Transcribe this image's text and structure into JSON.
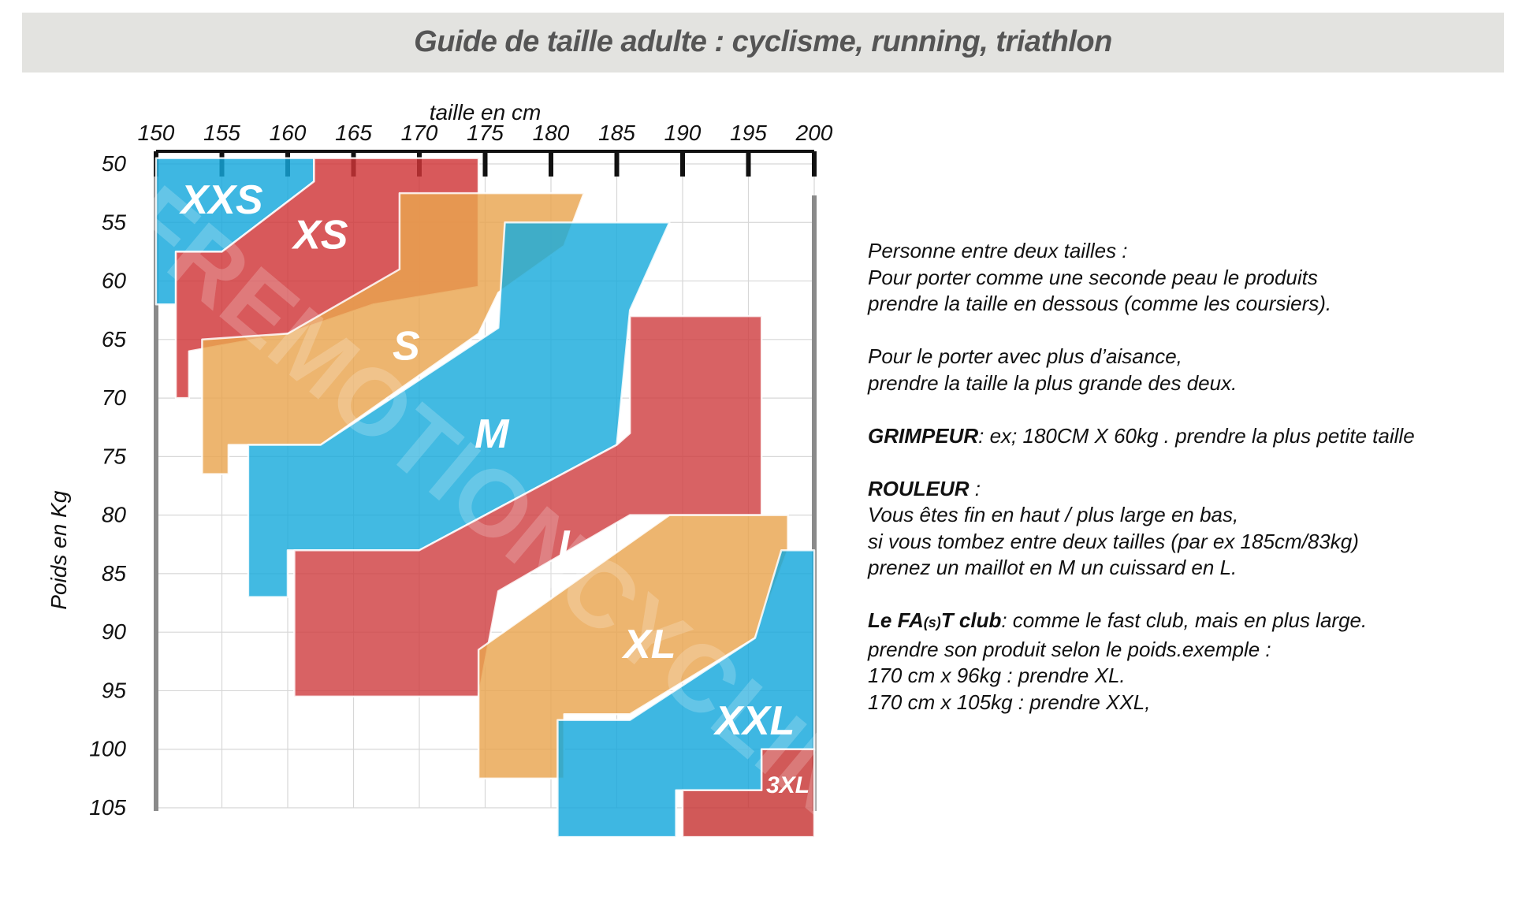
{
  "banner": {
    "title": "Guide de taille adulte : cyclisme, running, triathlon"
  },
  "chart_data": {
    "type": "area",
    "title": "Guide de taille adulte : cyclisme, running, triathlon",
    "xlabel": "taille en cm",
    "ylabel": "Poids en Kg",
    "x_ticks": [
      "150",
      "155",
      "160",
      "165",
      "170",
      "175",
      "180",
      "185",
      "190",
      "195",
      "200"
    ],
    "y_ticks": [
      "50",
      "55",
      "60",
      "65",
      "70",
      "75",
      "80",
      "85",
      "90",
      "95",
      "100",
      "105"
    ],
    "xlim": [
      150,
      200
    ],
    "ylim": [
      50,
      105
    ],
    "x_axis_position": "top",
    "y_axis_inverted": true,
    "grid": true,
    "legend": "none",
    "watermark": "FREMOTIONCYCLING",
    "series": [
      {
        "name": "XXS",
        "color": "#14a7dc",
        "label_at": [
          155,
          53
        ],
        "outline": [
          [
            150,
            49.5
          ],
          [
            162,
            49.5
          ],
          [
            162,
            51.5
          ],
          [
            155,
            57.5
          ],
          [
            151.5,
            57.5
          ],
          [
            151.5,
            62
          ],
          [
            150,
            62
          ]
        ]
      },
      {
        "name": "XS",
        "color": "#cf3537",
        "label_at": [
          162.5,
          56
        ],
        "outline": [
          [
            162,
            49.5
          ],
          [
            174.5,
            49.5
          ],
          [
            174.5,
            60.5
          ],
          [
            166.5,
            62
          ],
          [
            160,
            64.5
          ],
          [
            152.5,
            66
          ],
          [
            152.5,
            70
          ],
          [
            151.5,
            70
          ],
          [
            151.5,
            57.5
          ],
          [
            155,
            57.5
          ],
          [
            162,
            51.5
          ]
        ]
      },
      {
        "name": "S",
        "color": "#e9a54f",
        "label_at": [
          169,
          65.5
        ],
        "outline": [
          [
            168.5,
            52.5
          ],
          [
            182.5,
            52.5
          ],
          [
            181,
            57
          ],
          [
            176,
            61
          ],
          [
            174.5,
            64.5
          ],
          [
            162.5,
            74
          ],
          [
            155.5,
            74
          ],
          [
            155.5,
            76.5
          ],
          [
            153.5,
            76.5
          ],
          [
            153.5,
            65
          ],
          [
            160,
            64.5
          ],
          [
            168.5,
            59
          ]
        ]
      },
      {
        "name": "M",
        "color": "#18abdc",
        "label_at": [
          175.5,
          73
        ],
        "outline": [
          [
            176.5,
            55
          ],
          [
            189,
            55
          ],
          [
            186,
            62.5
          ],
          [
            185,
            74
          ],
          [
            170,
            83
          ],
          [
            160,
            83
          ],
          [
            160,
            87
          ],
          [
            157,
            87
          ],
          [
            157,
            74
          ],
          [
            162.5,
            74
          ],
          [
            176,
            64
          ]
        ]
      },
      {
        "name": "L",
        "color": "#cf4042",
        "label_at": [
          181.5,
          82.5
        ],
        "outline": [
          [
            186,
            63
          ],
          [
            196,
            63
          ],
          [
            196,
            80
          ],
          [
            186,
            80
          ],
          [
            176,
            86.5
          ],
          [
            174.5,
            95.5
          ],
          [
            160.5,
            95.5
          ],
          [
            160.5,
            83
          ],
          [
            170,
            83
          ],
          [
            185,
            74
          ],
          [
            186,
            73
          ]
        ]
      },
      {
        "name": "XL",
        "color": "#e9a54f",
        "label_at": [
          187.5,
          91
        ],
        "outline": [
          [
            189,
            80
          ],
          [
            198,
            80
          ],
          [
            198,
            83
          ],
          [
            195.5,
            90.5
          ],
          [
            186,
            97
          ],
          [
            181,
            97
          ],
          [
            181,
            102.5
          ],
          [
            174.5,
            102.5
          ],
          [
            174.5,
            91.5
          ]
        ]
      },
      {
        "name": "XXL",
        "color": "#14a7dc",
        "label_at": [
          195.5,
          97.5
        ],
        "outline": [
          [
            197.5,
            83
          ],
          [
            200,
            83
          ],
          [
            200,
            100
          ],
          [
            196,
            100
          ],
          [
            196,
            103.5
          ],
          [
            189.5,
            103.5
          ],
          [
            189.5,
            107.5
          ],
          [
            180.5,
            107.5
          ],
          [
            180.5,
            97.5
          ],
          [
            186,
            97.5
          ],
          [
            195.5,
            90.5
          ]
        ]
      },
      {
        "name": "3XL",
        "color": "#c73433",
        "label_at": [
          198,
          103
        ],
        "outline": [
          [
            196,
            100
          ],
          [
            200,
            100
          ],
          [
            200,
            107.5
          ],
          [
            190,
            107.5
          ],
          [
            190,
            103.5
          ],
          [
            196,
            103.5
          ]
        ]
      }
    ]
  },
  "notes": {
    "line1": "Personne  entre deux tailles :",
    "line2": "Pour porter comme une seconde peau le produits",
    "line3": "prendre la taille en dessous (comme les coursiers).",
    "line4": "Pour le porter avec plus d’aisance,",
    "line5": "prendre la taille la plus grande des deux.",
    "grimpeur_label": "GRIMPEUR",
    "grimpeur_text": ": ex; 180CM X 60kg . prendre la plus petite taille",
    "rouleur_label": "ROULEUR",
    "rouleur_text": " :",
    "line8": "Vous êtes fin en haut / plus large en bas,",
    "line9": "si vous tombez entre deux tailles (par ex 185cm/83kg)",
    "line10": "prenez un maillot en M un cuissard en L.",
    "club_label_a": "Le FA",
    "club_label_b": "(s)",
    "club_label_c": "T club",
    "club_text": ":  comme le fast club, mais en plus large.",
    "line12": "prendre son produit selon le poids.exemple :",
    "line13": "170 cm x 96kg : prendre XL.",
    "line14": "170 cm x 105kg : prendre XXL,"
  }
}
